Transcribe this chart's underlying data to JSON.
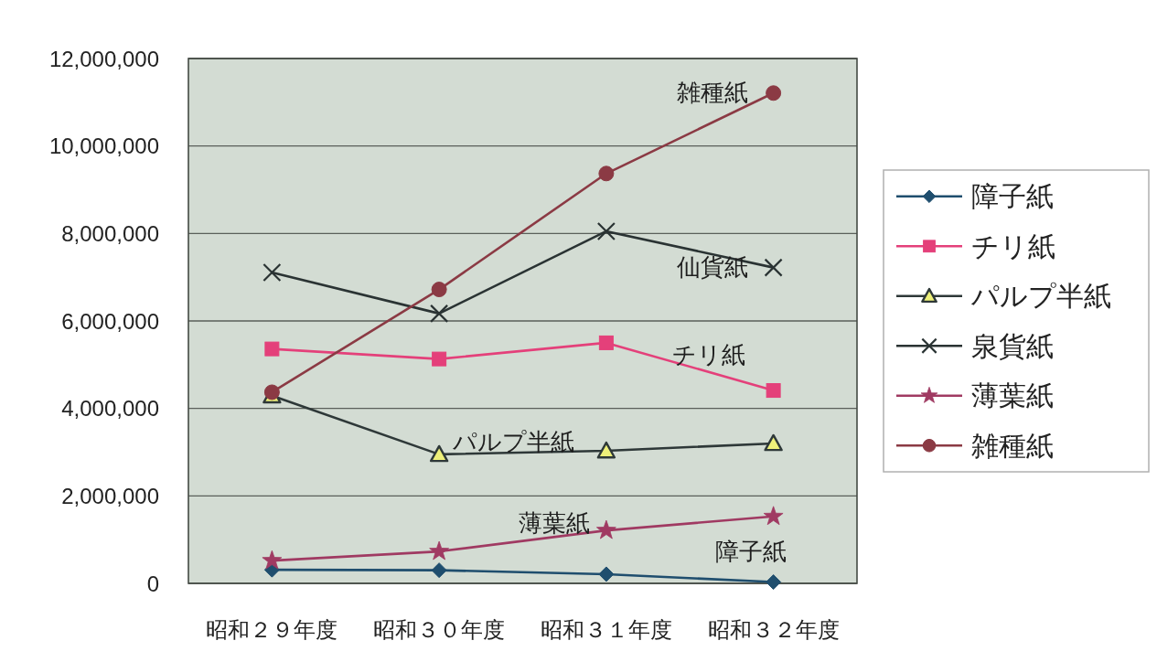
{
  "chart_data": {
    "type": "line",
    "categories": [
      "昭和２９年度",
      "昭和３０年度",
      "昭和３１年度",
      "昭和３２年度"
    ],
    "series": [
      {
        "name": "障子紙",
        "color": "#1f4e6e",
        "marker": "diamond",
        "values": [
          310000,
          300000,
          210000,
          30000
        ]
      },
      {
        "name": "チリ紙",
        "color": "#e4407a",
        "marker": "square",
        "values": [
          5360000,
          5130000,
          5500000,
          4410000
        ]
      },
      {
        "name": "パルプ半紙",
        "color": "#2e3838",
        "marker": "triangle",
        "values": [
          4290000,
          2950000,
          3030000,
          3200000
        ]
      },
      {
        "name": "泉貨紙",
        "color": "#2a3333",
        "marker": "cross",
        "values": [
          7110000,
          6170000,
          8050000,
          7220000
        ]
      },
      {
        "name": "薄葉紙",
        "color": "#a03a62",
        "marker": "star",
        "values": [
          520000,
          730000,
          1210000,
          1530000
        ]
      },
      {
        "name": "雑種紙",
        "color": "#8b3a44",
        "marker": "circle",
        "values": [
          4370000,
          6720000,
          9370000,
          11210000
        ]
      }
    ],
    "ylim": [
      0,
      12000000
    ],
    "yticks": [
      0,
      {
        "value": 2000000,
        "label": "2,000,000"
      },
      {
        "value": 4000000,
        "label": "4,000,000"
      },
      {
        "value": 6000000,
        "label": "6,000,000"
      },
      {
        "value": 8000000,
        "label": "8,000,000"
      },
      {
        "value": 10000000,
        "label": "10,000,000"
      },
      {
        "value": 12000000,
        "label": "12,000,000"
      }
    ],
    "grid": "y",
    "legend": "right",
    "annotations": [
      {
        "text": "雑種紙",
        "x": "昭和３２年度",
        "y": 11210000
      },
      {
        "text": "仙貨紙",
        "x": "昭和３２年度",
        "y": 7220000
      },
      "チリ紙",
      "パルプ半紙",
      {
        "text": "薄葉紙",
        "x": "昭和３１年度",
        "y": 1210000
      },
      "障子紙"
    ]
  }
}
